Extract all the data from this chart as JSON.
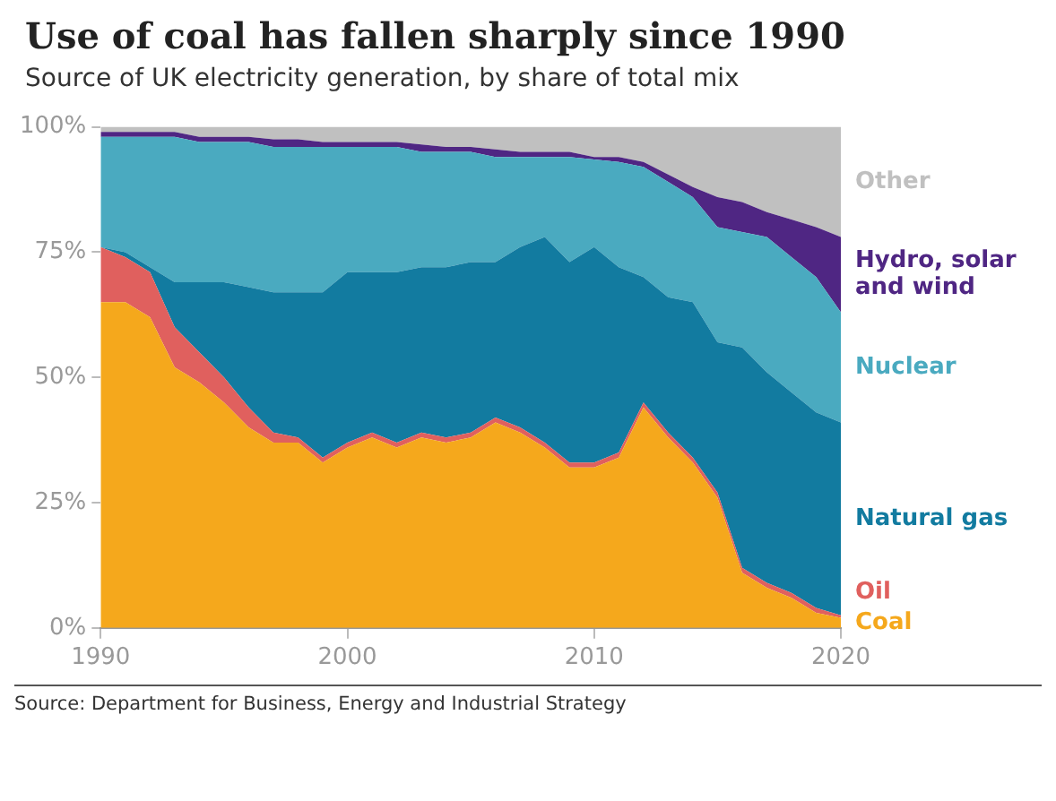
{
  "chart_data": {
    "type": "area",
    "title": "Use of coal has fallen sharply since 1990",
    "subtitle": "Source of UK electricity generation, by share of total mix",
    "annotations": [
      "Source: Department for Business, Energy and Industrial Strategy"
    ],
    "stacked": true,
    "x": [
      1990,
      1991,
      1992,
      1993,
      1994,
      1995,
      1996,
      1997,
      1998,
      1999,
      2000,
      2001,
      2002,
      2003,
      2004,
      2005,
      2006,
      2007,
      2008,
      2009,
      2010,
      2011,
      2012,
      2013,
      2014,
      2015,
      2016,
      2017,
      2018,
      2019,
      2020
    ],
    "xlim": [
      1990,
      2020
    ],
    "xticks": [
      1990,
      2000,
      2010,
      2020
    ],
    "ylim": [
      0,
      100
    ],
    "yticks": [
      {
        "value": 0,
        "label": "0%"
      },
      {
        "value": 25,
        "label": "25%"
      },
      {
        "value": 50,
        "label": "50%"
      },
      {
        "value": 75,
        "label": "75%"
      },
      {
        "value": 100,
        "label": "100%"
      }
    ],
    "grid": false,
    "series": [
      {
        "name": "Coal",
        "color": "#f5a81c",
        "values": [
          65,
          65,
          62,
          52,
          49,
          45,
          40,
          37,
          37,
          33,
          36,
          38,
          36,
          38,
          37,
          38,
          41,
          39,
          36,
          32,
          32,
          34,
          44,
          38,
          33,
          26,
          11,
          8,
          6,
          3,
          2
        ]
      },
      {
        "name": "Oil",
        "color": "#e0605e",
        "values": [
          11,
          9,
          9,
          8,
          6,
          5,
          4,
          2,
          1,
          1,
          1,
          1,
          1,
          1,
          1,
          1,
          1,
          1,
          1,
          1,
          1,
          1,
          1,
          1,
          1,
          1,
          1,
          1,
          1,
          1,
          0.5
        ]
      },
      {
        "name": "Natural gas",
        "color": "#127ba0",
        "values": [
          0,
          1,
          1,
          9,
          14,
          19,
          24,
          28,
          29,
          33,
          34,
          32,
          34,
          33,
          34,
          34,
          31,
          36,
          41,
          40,
          43,
          37,
          25,
          27,
          31,
          30,
          44,
          42,
          40,
          39,
          38.5
        ]
      },
      {
        "name": "Nuclear",
        "color": "#4aaac0",
        "values": [
          22,
          23,
          26,
          29,
          28,
          28,
          29,
          29,
          29,
          29,
          25,
          25,
          25,
          23,
          23,
          22,
          21,
          18,
          16,
          21,
          17.5,
          21,
          22,
          23,
          21,
          23,
          23,
          27,
          27,
          27,
          22
        ]
      },
      {
        "name": "Hydro, solar and wind",
        "color": "#4f2683",
        "values": [
          1,
          1,
          1,
          1,
          1,
          1,
          1,
          1.5,
          1.5,
          1,
          1,
          1,
          1,
          1.5,
          1,
          1,
          1.5,
          1,
          1,
          1,
          0.5,
          1,
          1,
          1.5,
          2,
          6,
          6,
          5,
          7.5,
          10,
          15
        ]
      },
      {
        "name": "Other",
        "color": "#c0c0c0",
        "values": [
          1,
          1,
          1,
          1,
          2,
          2,
          2,
          2.5,
          2.5,
          3,
          3,
          3,
          3,
          3.5,
          4,
          4,
          4.5,
          5,
          5,
          5,
          6,
          6,
          7,
          9.5,
          12,
          14,
          15,
          17,
          18.5,
          20,
          22
        ]
      }
    ]
  }
}
